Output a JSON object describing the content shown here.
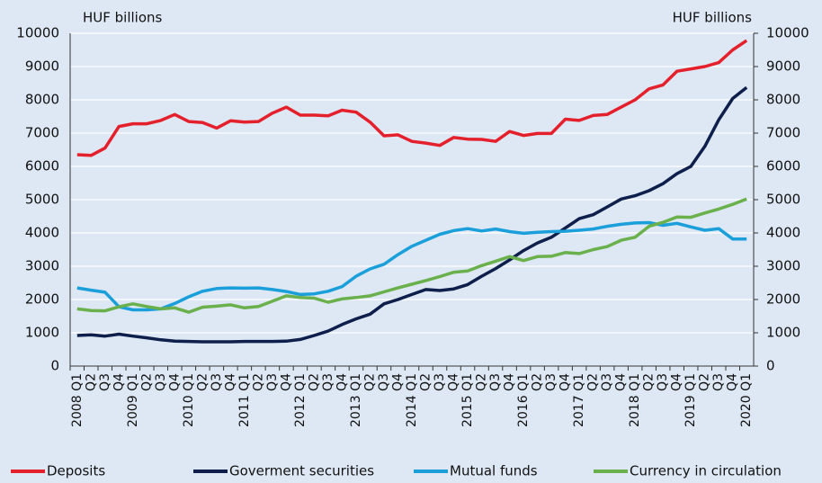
{
  "chart_data": {
    "type": "line",
    "ylabel": "HUF billions",
    "y2label": "HUF billions",
    "categories": [
      "2008 Q1",
      "Q2",
      "Q3",
      "Q4",
      "2009 Q1",
      "Q2",
      "Q3",
      "Q4",
      "2010 Q1",
      "Q2",
      "Q3",
      "Q4",
      "2011 Q1",
      "Q2",
      "Q3",
      "Q4",
      "2012 Q1",
      "Q2",
      "Q3",
      "Q4",
      "2013 Q1",
      "Q2",
      "Q3",
      "Q4",
      "2014 Q1",
      "Q2",
      "Q3",
      "Q4",
      "2015 Q1",
      "Q2",
      "Q3",
      "Q4",
      "2016 Q1",
      "Q2",
      "Q3",
      "Q4",
      "2017 Q1",
      "Q2",
      "Q3",
      "Q4",
      "2018 Q1",
      "Q2",
      "Q3",
      "Q4",
      "2019 Q1",
      "Q2",
      "Q3",
      "Q4",
      "2020 Q1"
    ],
    "series": [
      {
        "name": "Deposits",
        "color": "#e3202b",
        "values": [
          6350,
          6330,
          6550,
          7200,
          7280,
          7280,
          7380,
          7560,
          7350,
          7320,
          7150,
          7370,
          7330,
          7350,
          7600,
          7780,
          7540,
          7540,
          7520,
          7690,
          7630,
          7330,
          6920,
          6950,
          6750,
          6700,
          6630,
          6870,
          6820,
          6810,
          6750,
          7050,
          6930,
          6990,
          6990,
          7420,
          7380,
          7530,
          7560,
          7780,
          8000,
          8330,
          8450,
          8860,
          8930,
          9000,
          9120,
          9500,
          9780
        ]
      },
      {
        "name": "Goverment securities",
        "color": "#0d1f4a",
        "values": [
          920,
          940,
          900,
          960,
          900,
          850,
          790,
          750,
          740,
          730,
          730,
          730,
          740,
          740,
          740,
          750,
          800,
          920,
          1050,
          1250,
          1420,
          1560,
          1870,
          2000,
          2150,
          2300,
          2270,
          2320,
          2450,
          2700,
          2930,
          3190,
          3470,
          3700,
          3870,
          4150,
          4430,
          4550,
          4780,
          5020,
          5120,
          5270,
          5480,
          5780,
          6000,
          6600,
          7400,
          8040,
          8370
        ]
      },
      {
        "name": "Mutual funds",
        "color": "#1a9fdb",
        "values": [
          2350,
          2280,
          2220,
          1780,
          1690,
          1690,
          1720,
          1880,
          2080,
          2250,
          2330,
          2350,
          2340,
          2350,
          2300,
          2240,
          2150,
          2170,
          2250,
          2390,
          2700,
          2920,
          3060,
          3350,
          3600,
          3780,
          3960,
          4070,
          4130,
          4060,
          4120,
          4040,
          3990,
          4020,
          4040,
          4050,
          4080,
          4120,
          4200,
          4260,
          4300,
          4310,
          4230,
          4290,
          4180,
          4080,
          4130,
          3820,
          3820
        ]
      },
      {
        "name": "Currency in circulation",
        "color": "#6ab04c",
        "values": [
          1720,
          1670,
          1660,
          1780,
          1870,
          1790,
          1720,
          1750,
          1620,
          1770,
          1800,
          1840,
          1750,
          1790,
          1950,
          2110,
          2060,
          2040,
          1920,
          2020,
          2060,
          2110,
          2230,
          2350,
          2460,
          2570,
          2690,
          2820,
          2860,
          3020,
          3150,
          3290,
          3170,
          3290,
          3300,
          3410,
          3380,
          3500,
          3590,
          3780,
          3870,
          4200,
          4320,
          4480,
          4470,
          4600,
          4720,
          4860,
          5020
        ]
      }
    ],
    "ylim": [
      0,
      10000
    ],
    "yticks": [
      0,
      1000,
      2000,
      3000,
      4000,
      5000,
      6000,
      7000,
      8000,
      9000,
      10000
    ],
    "y2lim": [
      0,
      10000
    ],
    "y2ticks": [
      0,
      1000,
      2000,
      3000,
      4000,
      5000,
      6000,
      7000,
      8000,
      9000,
      10000
    ],
    "grid": true,
    "legend": "bottom"
  }
}
